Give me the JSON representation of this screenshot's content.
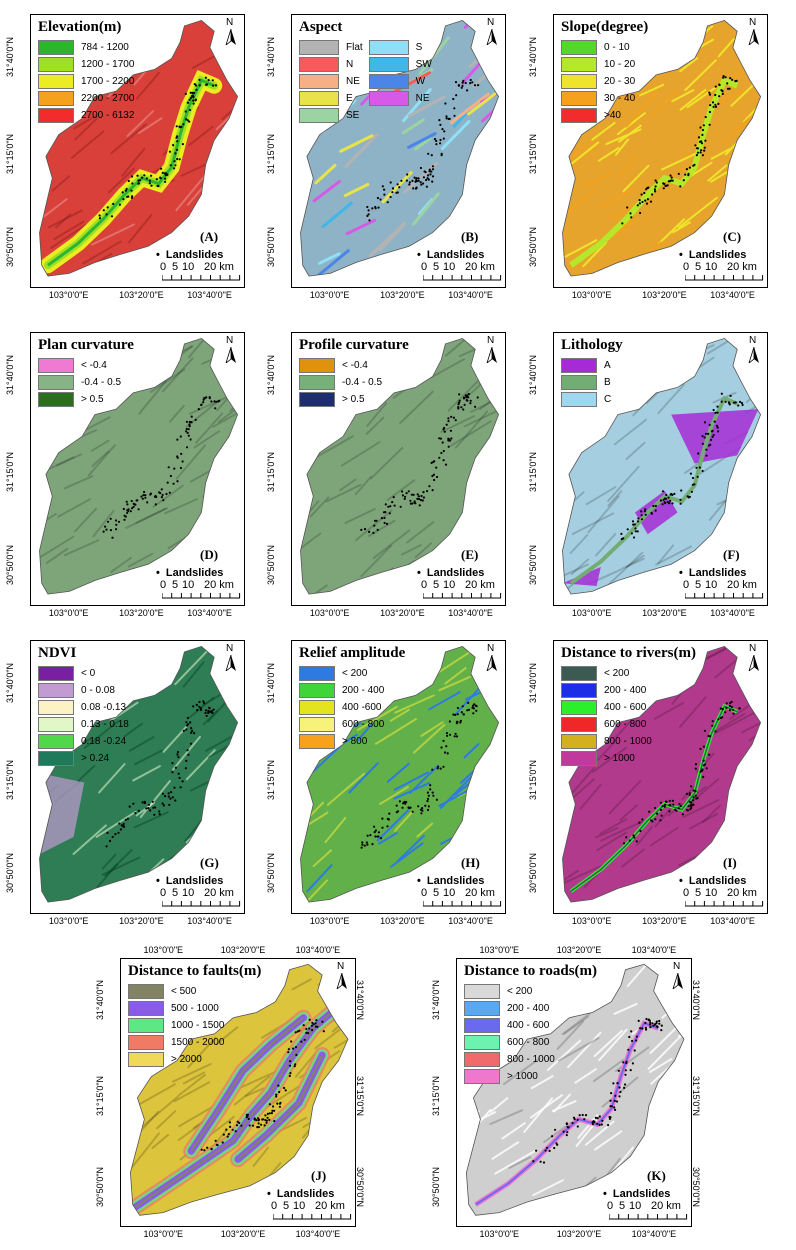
{
  "common": {
    "landslides_label": "Landslides",
    "scale": {
      "ticks": [
        "0",
        "5",
        "10",
        "20 km"
      ]
    },
    "north": "N",
    "lon_ticks": [
      "103°0'0\"E",
      "103°20'0\"E",
      "103°40'0\"E"
    ],
    "lat_ticks": [
      "31°40'0\"N",
      "31°15'0\"N",
      "30°50'0\"N"
    ]
  },
  "panels": [
    {
      "id": "A",
      "title": "Elevation(m)",
      "label": "(A)",
      "fill": "#d9403a",
      "texture": "elev",
      "legend": [
        {
          "label": "784 - 1200",
          "color": "#2db52d"
        },
        {
          "label": "1200 - 1700",
          "color": "#9de025"
        },
        {
          "label": "1700 - 2200",
          "color": "#ecec22"
        },
        {
          "label": "2200 - 2700",
          "color": "#f4a21d"
        },
        {
          "label": "2700 - 6132",
          "color": "#f22c2c"
        }
      ]
    },
    {
      "id": "B",
      "title": "Aspect",
      "label": "(B)",
      "fill": "#8fb3c6",
      "texture": "aspect",
      "legend": [
        {
          "label": "Flat",
          "color": "#b3b3b3"
        },
        {
          "label": "S",
          "color": "#8fe0f7"
        },
        {
          "label": "N",
          "color": "#f55b5b"
        },
        {
          "label": "SW",
          "color": "#3fb7e8"
        },
        {
          "label": "NE",
          "color": "#f7b083"
        },
        {
          "label": "W",
          "color": "#4a86e8"
        },
        {
          "label": "E",
          "color": "#e9e34a"
        },
        {
          "label": "NE",
          "color": "#d659e8"
        },
        {
          "label": "SE",
          "color": "#9bd3a2"
        }
      ]
    },
    {
      "id": "C",
      "title": "Slope(degree)",
      "label": "(C)",
      "fill": "#e6a42c",
      "texture": "slope",
      "legend": [
        {
          "label": "0 - 10",
          "color": "#55d62c"
        },
        {
          "label": "10 - 20",
          "color": "#b5e82a"
        },
        {
          "label": "20 - 30",
          "color": "#efe42b"
        },
        {
          "label": "30 - 40",
          "color": "#f4a21d"
        },
        {
          "label": ">40",
          "color": "#f22c2c"
        }
      ]
    },
    {
      "id": "D",
      "title": "Plan curvature",
      "label": "(D)",
      "fill": "#7ea57a",
      "texture": "plain",
      "legend": [
        {
          "label": "< -0.4",
          "color": "#f07ad2"
        },
        {
          "label": "-0.4 - 0.5",
          "color": "#87b387"
        },
        {
          "label": "> 0.5",
          "color": "#2c6e1f"
        }
      ]
    },
    {
      "id": "E",
      "title": "Profile curvature",
      "label": "(E)",
      "fill": "#7ea57a",
      "texture": "plain",
      "legend": [
        {
          "label": "< -0.4",
          "color": "#e0920c"
        },
        {
          "label": "-0.4 - 0.5",
          "color": "#78b07a"
        },
        {
          "label": "> 0.5",
          "color": "#1c2e6e"
        }
      ]
    },
    {
      "id": "F",
      "title": "Lithology",
      "label": "(F)",
      "fill": "#a5cfe0",
      "texture": "litho",
      "legend": [
        {
          "label": "A",
          "color": "#a62bd6"
        },
        {
          "label": "B",
          "color": "#73ad73"
        },
        {
          "label": "C",
          "color": "#9fd8ee"
        }
      ]
    },
    {
      "id": "G",
      "title": "NDVI",
      "label": "(G)",
      "fill": "#2e7d55",
      "texture": "ndvi",
      "legend": [
        {
          "label": "< 0",
          "color": "#7b1fa2"
        },
        {
          "label": "0 - 0.08",
          "color": "#c39bd3"
        },
        {
          "label": "0.08 -0.13",
          "color": "#fbf3c4"
        },
        {
          "label": "0.13 - 0.18",
          "color": "#e1f7c7"
        },
        {
          "label": "0.18 -0.24",
          "color": "#51d84a"
        },
        {
          "label": "> 0.24",
          "color": "#1e7a5a"
        }
      ]
    },
    {
      "id": "H",
      "title": "Relief amplitude",
      "label": "(H)",
      "fill": "#62b04a",
      "texture": "relief",
      "legend": [
        {
          "label": "< 200",
          "color": "#2d7be0"
        },
        {
          "label": "200 - 400",
          "color": "#3fd437"
        },
        {
          "label": "400 -600",
          "color": "#e3e31f"
        },
        {
          "label": "600 - 800",
          "color": "#f7f27a"
        },
        {
          "label": "> 800",
          "color": "#f7a11d"
        }
      ]
    },
    {
      "id": "I",
      "title": "Distance to rivers(m)",
      "label": "(I)",
      "fill": "#b23a8c",
      "texture": "river",
      "legend": [
        {
          "label": "< 200",
          "color": "#3a5a52"
        },
        {
          "label": "200 - 400",
          "color": "#1e2ee8"
        },
        {
          "label": "400 - 600",
          "color": "#2cef2c"
        },
        {
          "label": "600 - 800",
          "color": "#ef2727"
        },
        {
          "label": "800 - 1000",
          "color": "#d4b021"
        },
        {
          "label": "> 1000",
          "color": "#c2399e"
        }
      ]
    },
    {
      "id": "J",
      "title": "Distance to faults(m)",
      "label": "(J)",
      "fill": "#dcc43c",
      "texture": "fault",
      "legend": [
        {
          "label": "< 500",
          "color": "#828264"
        },
        {
          "label": "500 - 1000",
          "color": "#8a5be8"
        },
        {
          "label": "1000 - 1500",
          "color": "#5de883"
        },
        {
          "label": "1500 - 2000",
          "color": "#ef7b65"
        },
        {
          "label": "> 2000",
          "color": "#efd85a"
        }
      ]
    },
    {
      "id": "K",
      "title": "Distance to roads(m)",
      "label": "(K)",
      "fill": "#cfcfcf",
      "texture": "road",
      "legend": [
        {
          "label": "< 200",
          "color": "#d9d9d9"
        },
        {
          "label": "200 - 400",
          "color": "#5aa8ef"
        },
        {
          "label": "400 - 600",
          "color": "#6a6aef"
        },
        {
          "label": "600 - 800",
          "color": "#6ef2b0"
        },
        {
          "label": "800 - 1000",
          "color": "#ef6a6a"
        },
        {
          "label": "> 1000",
          "color": "#ef78cf"
        }
      ]
    }
  ]
}
